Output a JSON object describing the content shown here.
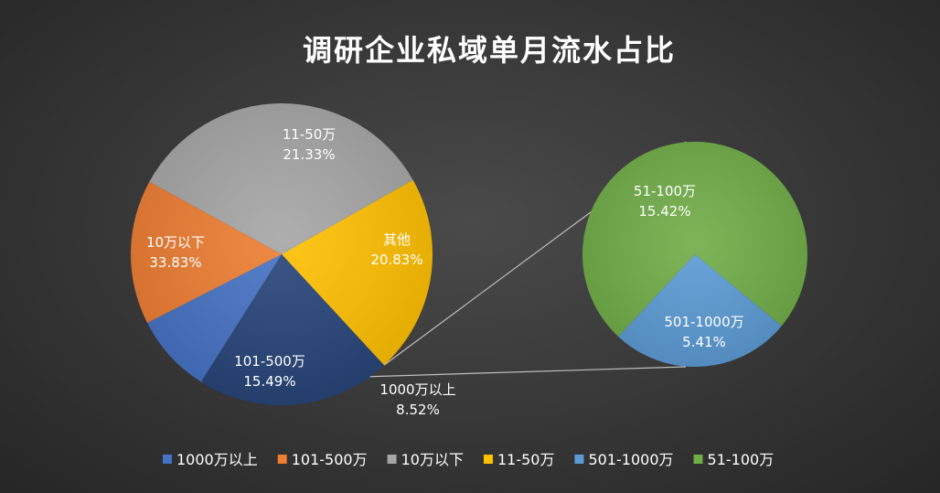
{
  "chart_data": {
    "type": "pie",
    "title": "调研企业私域单月流水占比",
    "main_pie": [
      {
        "label": "11-50万",
        "value": 21.33,
        "display": "21.33%",
        "color": "#ffc000"
      },
      {
        "label": "其他",
        "value": 20.83,
        "display": "20.83%",
        "color": "#264478"
      },
      {
        "label": "1000万以上",
        "value": 8.52,
        "display": "8.52%",
        "color": "#4472c4"
      },
      {
        "label": "101-500万",
        "value": 15.49,
        "display": "15.49%",
        "color": "#ed7d31"
      },
      {
        "label": "10万以下",
        "value": 33.83,
        "display": "33.83%",
        "color": "#a5a5a5"
      }
    ],
    "secondary_pie": [
      {
        "label": "51-100万",
        "value": 15.42,
        "display": "15.42%",
        "color": "#70ad47"
      },
      {
        "label": "501-1000万",
        "value": 5.41,
        "display": "5.41%",
        "color": "#5b9bd5"
      }
    ],
    "legend": [
      {
        "label": "1000万以上",
        "color": "#4472c4"
      },
      {
        "label": "101-500万",
        "color": "#ed7d31"
      },
      {
        "label": "10万以下",
        "color": "#a5a5a5"
      },
      {
        "label": "11-50万",
        "color": "#ffc000"
      },
      {
        "label": "501-1000万",
        "color": "#5b9bd5"
      },
      {
        "label": "51-100万",
        "color": "#70ad47"
      }
    ],
    "legend_position": "bottom"
  }
}
